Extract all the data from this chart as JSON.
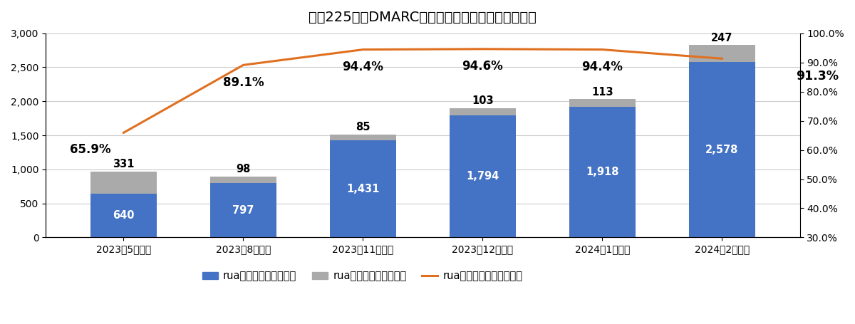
{
  "title": "日経225企業DMARC集約レポートモニタリング状況",
  "categories": [
    "2023年5月調査",
    "2023年8月調査",
    "2023年11月調査",
    "2023年12月調査",
    "2024年1月調査",
    "2024年2月調査"
  ],
  "rua_values": [
    640,
    797,
    1431,
    1794,
    1918,
    2578
  ],
  "no_rua_values": [
    331,
    98,
    85,
    103,
    113,
    247
  ],
  "rua_pct": [
    65.9,
    89.1,
    94.4,
    94.6,
    94.4,
    91.3
  ],
  "bar_color_rua": "#4472C4",
  "bar_color_no_rua": "#AAAAAA",
  "line_color": "#E07020",
  "ylim_left": [
    0,
    3000
  ],
  "ylim_right": [
    30.0,
    100.0
  ],
  "yticks_left": [
    0,
    500,
    1000,
    1500,
    2000,
    2500,
    3000
  ],
  "yticks_right": [
    30.0,
    40.0,
    50.0,
    60.0,
    70.0,
    80.0,
    90.0,
    100.0
  ],
  "legend_labels": [
    "ruaタグありドメイン数",
    "ruaタグなしドメイン数",
    "ruaタグありドメイン割合"
  ],
  "title_fontsize": 14,
  "tick_fontsize": 10,
  "background_color": "#FFFFFF",
  "grid_color": "#CCCCCC"
}
